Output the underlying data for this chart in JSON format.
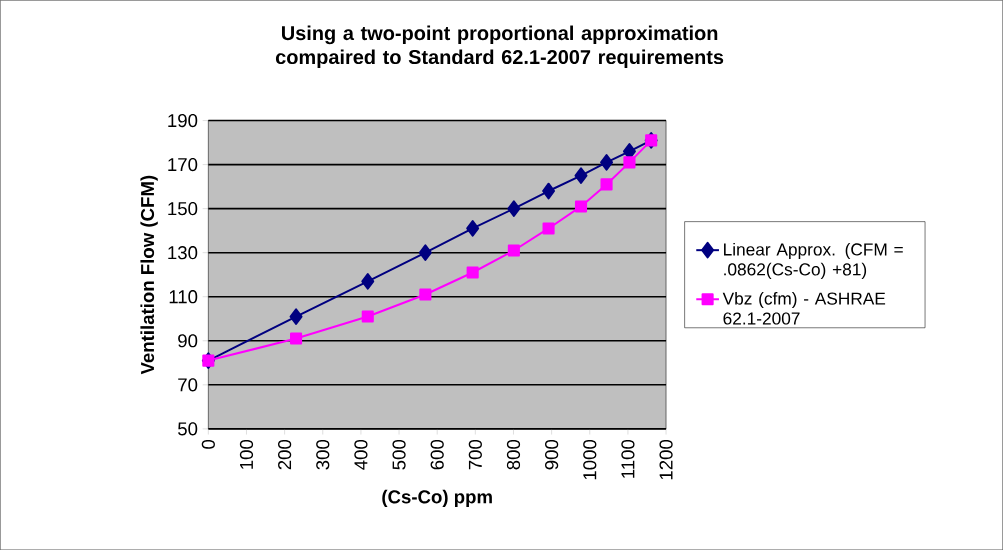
{
  "chart_data": {
    "type": "line",
    "title": "Using a two-point proportional approximation compaired to Standard 62.1-2007 requirements",
    "xlabel": "(Cs-Co) ppm",
    "ylabel": "Ventilation Flow (CFM)",
    "x": [
      0,
      230,
      418,
      569,
      693,
      801,
      892,
      977,
      1044,
      1104,
      1161
    ],
    "series": [
      {
        "name": "Linear Approx. (CFM = .0862(Cs-Co) +81)",
        "color": "#000080",
        "marker": "diamond",
        "values": [
          81,
          101,
          117,
          130,
          141,
          150,
          158,
          165,
          171,
          176,
          181
        ]
      },
      {
        "name": "Vbz (cfm) - ASHRAE 62.1-2007",
        "color": "#ff00ff",
        "marker": "square",
        "values": [
          81,
          91,
          101,
          111,
          121,
          131,
          141,
          151,
          161,
          171,
          181
        ]
      }
    ],
    "xlim": [
      0,
      1200
    ],
    "xticks": [
      0,
      100,
      200,
      300,
      400,
      500,
      600,
      700,
      800,
      900,
      1000,
      1100,
      1200
    ],
    "ylim": [
      50,
      190
    ],
    "yticks": [
      50,
      70,
      90,
      110,
      130,
      150,
      170,
      190
    ],
    "grid": "y",
    "legend": "right",
    "line_style": "solid"
  }
}
